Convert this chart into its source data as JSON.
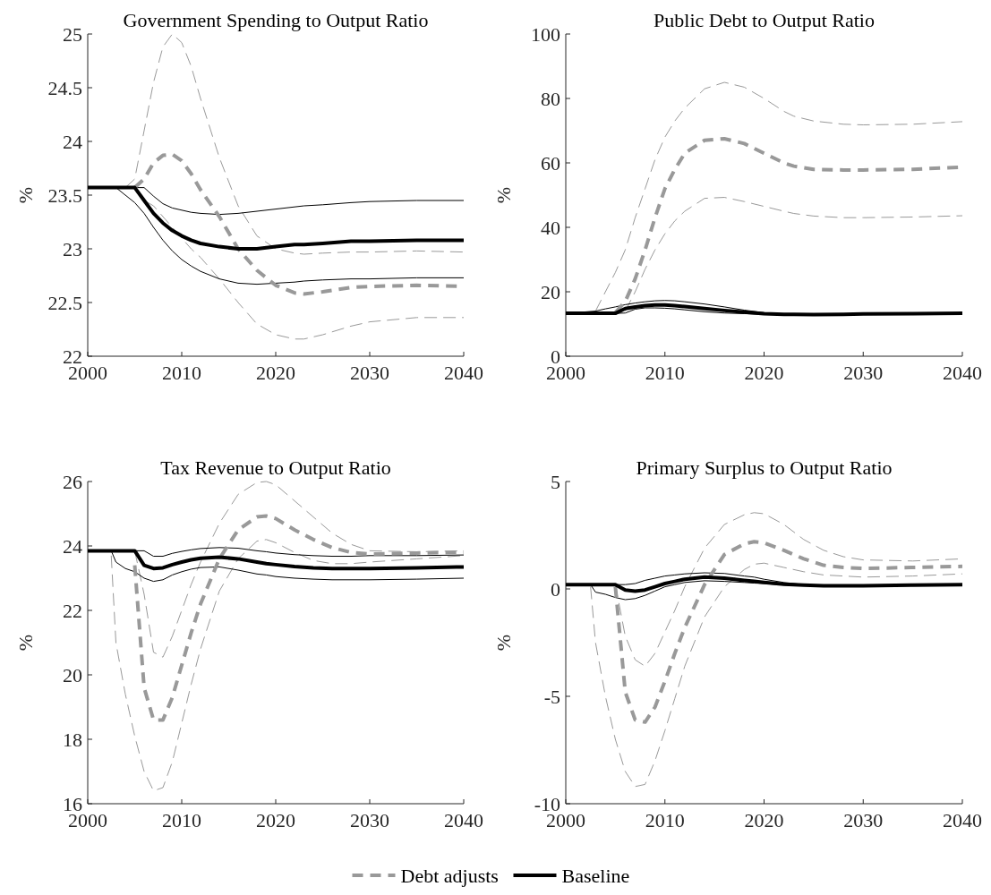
{
  "chart_data": [
    {
      "type": "line",
      "title": "Government Spending to Output Ratio",
      "ylabel": "%",
      "xlim": [
        2000,
        2040
      ],
      "xticks": [
        2000,
        2010,
        2020,
        2030,
        2040
      ],
      "ylim": [
        22,
        25
      ],
      "yticks": [
        22,
        22.5,
        23,
        23.5,
        24,
        24.5,
        25
      ],
      "legend": "bottom",
      "x": [
        2000,
        2003,
        2004,
        2005,
        2006,
        2007,
        2008,
        2009,
        2010,
        2011,
        2012,
        2014,
        2016,
        2018,
        2020,
        2022,
        2023,
        2025,
        2028,
        2030,
        2035,
        2040
      ],
      "series": [
        {
          "color": "#999999",
          "line_style": "dashed",
          "values": [
            null,
            null,
            23.57,
            23.65,
            24.1,
            24.55,
            24.88,
            25.0,
            24.92,
            24.7,
            24.4,
            23.85,
            23.4,
            23.12,
            23.0,
            22.96,
            22.95,
            22.96,
            22.97,
            22.97,
            22.98,
            22.97
          ]
        },
        {
          "color": "#999999",
          "line_style": "dashed",
          "values": [
            null,
            null,
            null,
            23.57,
            23.45,
            23.4,
            23.3,
            23.2,
            23.1,
            23.0,
            22.92,
            22.72,
            22.5,
            22.3,
            22.2,
            22.16,
            22.16,
            22.2,
            22.28,
            22.32,
            22.36,
            22.36
          ]
        },
        {
          "color": "#000000",
          "line_style": "solid",
          "values": [
            null,
            null,
            null,
            23.57,
            23.57,
            23.49,
            23.42,
            23.38,
            23.36,
            23.34,
            23.33,
            23.32,
            23.33,
            23.35,
            23.37,
            23.39,
            23.4,
            23.41,
            23.43,
            23.44,
            23.45,
            23.45
          ]
        },
        {
          "color": "#000000",
          "line_style": "solid",
          "values": [
            null,
            23.57,
            23.5,
            23.43,
            23.33,
            23.2,
            23.08,
            22.98,
            22.9,
            22.84,
            22.79,
            22.72,
            22.68,
            22.67,
            22.68,
            22.69,
            22.7,
            22.71,
            22.72,
            22.72,
            22.73,
            22.73
          ]
        },
        {
          "name": "Debt adjusts",
          "color": "#999999",
          "line_style": "dashed",
          "values": [
            null,
            null,
            null,
            23.57,
            23.65,
            23.8,
            23.87,
            23.88,
            23.82,
            23.7,
            23.55,
            23.3,
            23.0,
            22.8,
            22.66,
            22.59,
            22.58,
            22.6,
            22.64,
            22.65,
            22.66,
            22.65
          ]
        },
        {
          "name": "Baseline",
          "color": "#000000",
          "line_style": "solid",
          "values": [
            23.57,
            23.57,
            23.57,
            23.57,
            23.45,
            23.33,
            23.24,
            23.17,
            23.12,
            23.08,
            23.05,
            23.02,
            23.0,
            23.0,
            23.02,
            23.04,
            23.04,
            23.05,
            23.07,
            23.07,
            23.08,
            23.08
          ]
        }
      ]
    },
    {
      "type": "line",
      "title": "Public Debt to Output Ratio",
      "ylabel": "%",
      "xlim": [
        2000,
        2040
      ],
      "xticks": [
        2000,
        2010,
        2020,
        2030,
        2040
      ],
      "ylim": [
        0,
        100
      ],
      "yticks": [
        0,
        20,
        40,
        60,
        80,
        100
      ],
      "x": [
        2000,
        2003,
        2004,
        2005,
        2006,
        2007,
        2008,
        2009,
        2010,
        2011,
        2012,
        2014,
        2016,
        2018,
        2020,
        2022,
        2023,
        2025,
        2028,
        2030,
        2035,
        2040
      ],
      "series": [
        {
          "color": "#999999",
          "line_style": "dashed",
          "values": [
            null,
            14,
            20,
            26,
            33,
            43,
            52,
            61,
            68,
            73,
            77,
            83,
            85,
            83.5,
            80,
            76,
            74.5,
            73,
            72,
            71.8,
            72,
            72.8
          ]
        },
        {
          "color": "#999999",
          "line_style": "dashed",
          "values": [
            null,
            null,
            null,
            null,
            14,
            20,
            27,
            33,
            38,
            42,
            45,
            49,
            49.3,
            48,
            46.5,
            45,
            44.3,
            43.5,
            43,
            43,
            43.2,
            43.6
          ]
        },
        {
          "color": "#000000",
          "line_style": "solid",
          "values": [
            13.3,
            14.0,
            14.7,
            15.3,
            16.0,
            16.5,
            16.9,
            17.2,
            17.3,
            17.2,
            16.9,
            16.2,
            15.3,
            14.3,
            13.5,
            13.1,
            13.0,
            13.0,
            13.1,
            13.2,
            13.3,
            13.3
          ]
        },
        {
          "color": "#000000",
          "line_style": "solid",
          "values": [
            null,
            null,
            null,
            13.3,
            13.4,
            14.6,
            15.0,
            15.0,
            14.9,
            14.7,
            14.4,
            13.8,
            13.4,
            13.2,
            13.0,
            12.9,
            12.9,
            12.9,
            13.0,
            13.1,
            13.2,
            13.3
          ]
        },
        {
          "name": "Debt adjusts",
          "color": "#999999",
          "line_style": "dashed",
          "values": [
            null,
            null,
            null,
            13.5,
            17,
            24,
            33,
            43,
            52,
            58,
            63,
            67,
            67.5,
            66,
            63,
            60,
            59,
            58,
            57.8,
            57.8,
            58,
            58.7
          ]
        },
        {
          "name": "Baseline",
          "color": "#000000",
          "line_style": "solid",
          "values": [
            13.3,
            13.3,
            13.3,
            13.3,
            14.8,
            15.3,
            15.7,
            15.9,
            15.9,
            15.7,
            15.4,
            14.8,
            14.2,
            13.7,
            13.2,
            13.0,
            13.0,
            12.9,
            13.0,
            13.1,
            13.2,
            13.3
          ]
        }
      ]
    },
    {
      "type": "line",
      "title": "Tax Revenue to Output Ratio",
      "ylabel": "%",
      "xlim": [
        2000,
        2040
      ],
      "xticks": [
        2000,
        2010,
        2020,
        2030,
        2040
      ],
      "ylim": [
        16,
        26
      ],
      "yticks": [
        16,
        18,
        20,
        22,
        24,
        26
      ],
      "x": [
        2000,
        2002.5,
        2003,
        2004,
        2005,
        2006,
        2007,
        2008,
        2009,
        2010,
        2011,
        2012,
        2014,
        2016,
        2018,
        2019,
        2020,
        2022,
        2024,
        2026,
        2028,
        2030,
        2035,
        2040
      ],
      "series": [
        {
          "color": "#999999",
          "line_style": "dashed",
          "values": [
            null,
            null,
            null,
            null,
            23.85,
            22.5,
            20.7,
            20.55,
            21.2,
            22.0,
            22.8,
            23.5,
            24.7,
            25.6,
            25.97,
            26.0,
            25.9,
            25.4,
            24.9,
            24.4,
            24.05,
            23.85,
            23.82,
            23.85
          ]
        },
        {
          "color": "#999999",
          "line_style": "dashed",
          "values": [
            null,
            23.7,
            21.0,
            19.4,
            18.1,
            17.0,
            16.4,
            16.5,
            17.3,
            18.5,
            19.7,
            20.8,
            22.6,
            23.6,
            24.15,
            24.2,
            24.1,
            23.8,
            23.55,
            23.45,
            23.45,
            23.5,
            23.6,
            23.7
          ]
        },
        {
          "color": "#000000",
          "line_style": "solid",
          "values": [
            null,
            null,
            null,
            null,
            23.85,
            23.85,
            23.68,
            23.68,
            23.77,
            23.83,
            23.88,
            23.92,
            23.95,
            23.93,
            23.85,
            23.82,
            23.78,
            23.73,
            23.7,
            23.68,
            23.68,
            23.7,
            23.7,
            23.72
          ]
        },
        {
          "color": "#000000",
          "line_style": "solid",
          "values": [
            null,
            23.85,
            23.5,
            23.3,
            23.2,
            23.0,
            22.9,
            22.95,
            23.1,
            23.2,
            23.28,
            23.33,
            23.35,
            23.25,
            23.13,
            23.1,
            23.05,
            23.0,
            22.97,
            22.95,
            22.95,
            22.95,
            22.97,
            23.0
          ]
        },
        {
          "name": "Debt adjusts",
          "color": "#999999",
          "line_style": "dashed",
          "values": [
            null,
            null,
            null,
            null,
            23.4,
            19.6,
            18.6,
            18.6,
            19.3,
            20.3,
            21.3,
            22.2,
            23.6,
            24.5,
            24.9,
            24.93,
            24.85,
            24.5,
            24.2,
            23.95,
            23.8,
            23.75,
            23.78,
            23.8
          ]
        },
        {
          "name": "Baseline",
          "color": "#000000",
          "line_style": "solid",
          "values": [
            23.85,
            23.85,
            23.85,
            23.85,
            23.85,
            23.4,
            23.3,
            23.32,
            23.42,
            23.5,
            23.57,
            23.62,
            23.65,
            23.6,
            23.5,
            23.45,
            23.42,
            23.36,
            23.32,
            23.3,
            23.3,
            23.3,
            23.32,
            23.35
          ]
        }
      ]
    },
    {
      "type": "line",
      "title": "Primary Surplus to Output Ratio",
      "ylabel": "%",
      "xlim": [
        2000,
        2040
      ],
      "xticks": [
        2000,
        2010,
        2020,
        2030,
        2040
      ],
      "ylim": [
        -10,
        5
      ],
      "yticks": [
        -10,
        -5,
        0,
        5
      ],
      "x": [
        2000,
        2002.5,
        2003,
        2004,
        2005,
        2006,
        2007,
        2008,
        2009,
        2010,
        2011,
        2012,
        2014,
        2016,
        2018,
        2019,
        2020,
        2022,
        2024,
        2026,
        2028,
        2030,
        2035,
        2040
      ],
      "series": [
        {
          "color": "#999999",
          "line_style": "dashed",
          "values": [
            null,
            null,
            null,
            null,
            0.2,
            -2.2,
            -3.3,
            -3.6,
            -3.0,
            -2.0,
            -1.0,
            0.1,
            1.9,
            3.0,
            3.45,
            3.55,
            3.5,
            3.0,
            2.3,
            1.8,
            1.5,
            1.35,
            1.3,
            1.4
          ]
        },
        {
          "color": "#999999",
          "line_style": "dashed",
          "values": [
            null,
            0.1,
            -2.5,
            -5.0,
            -7.0,
            -8.5,
            -9.2,
            -9.1,
            -8.0,
            -6.6,
            -5.1,
            -3.6,
            -1.3,
            0.1,
            0.9,
            1.15,
            1.2,
            1.0,
            0.8,
            0.65,
            0.6,
            0.55,
            0.6,
            0.7
          ]
        },
        {
          "color": "#000000",
          "line_style": "solid",
          "values": [
            null,
            null,
            null,
            null,
            0.2,
            0.2,
            0.25,
            0.4,
            0.5,
            0.6,
            0.65,
            0.7,
            0.75,
            0.72,
            0.6,
            0.55,
            0.45,
            0.3,
            0.2,
            0.17,
            0.15,
            0.15,
            0.18,
            0.2
          ]
        },
        {
          "color": "#000000",
          "line_style": "solid",
          "values": [
            null,
            0.2,
            -0.15,
            -0.25,
            -0.4,
            -0.5,
            -0.45,
            -0.3,
            -0.1,
            0.1,
            0.2,
            0.3,
            0.38,
            0.35,
            0.3,
            0.27,
            0.25,
            0.18,
            0.15,
            0.13,
            0.13,
            0.14,
            0.17,
            0.2
          ]
        },
        {
          "name": "Debt adjusts",
          "color": "#999999",
          "line_style": "dashed",
          "values": [
            null,
            null,
            null,
            null,
            0.1,
            -4.8,
            -6.1,
            -6.2,
            -5.5,
            -4.3,
            -3.0,
            -1.8,
            0.2,
            1.6,
            2.1,
            2.2,
            2.15,
            1.8,
            1.4,
            1.1,
            1.0,
            0.95,
            1.0,
            1.05
          ]
        },
        {
          "name": "Baseline",
          "color": "#000000",
          "line_style": "solid",
          "values": [
            0.2,
            0.2,
            0.2,
            0.2,
            0.2,
            -0.05,
            -0.1,
            -0.05,
            0.1,
            0.25,
            0.35,
            0.45,
            0.55,
            0.5,
            0.4,
            0.35,
            0.3,
            0.22,
            0.18,
            0.15,
            0.15,
            0.15,
            0.18,
            0.2
          ]
        }
      ]
    }
  ]
}
